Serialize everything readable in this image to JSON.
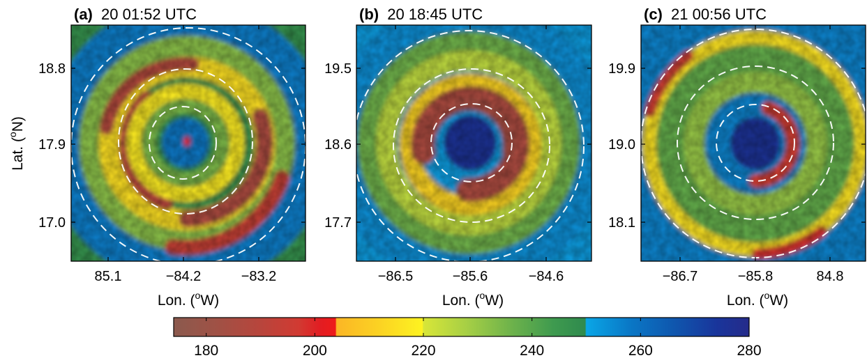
{
  "figure": {
    "ylabel": {
      "pre": "Lat. (",
      "sup": "o",
      "post": "N)"
    },
    "xlabel": {
      "pre": "Lon. (",
      "sup": "o",
      "post": "W)"
    }
  },
  "chart_data": {
    "type": "heatmap",
    "panels": [
      {
        "tag": "(a)",
        "time": "20 01:52 UTC",
        "xticks": [
          "85.1",
          "−84.2",
          "−83.2"
        ],
        "yticks": [
          "18.8",
          "17.9",
          "17.0"
        ],
        "xlim": [
          -85.7,
          -82.6
        ],
        "ylim": [
          16.5,
          19.5
        ],
        "eye_brightness_temp": 258,
        "structure": "Pinhole eye with tight inner eyewall and spiral bands; dashed rings mark radial distances from center"
      },
      {
        "tag": "(b)",
        "time": "20 18:45 UTC",
        "xticks": [
          "−86.5",
          "−85.6",
          "−84.6"
        ],
        "yticks": [
          "19.5",
          "18.6",
          "17.7"
        ],
        "xlim": [
          -87.1,
          -84.2
        ],
        "ylim": [
          17.1,
          20.1
        ],
        "eye_brightness_temp": 276,
        "structure": "Single eyewall ring of cold cloud tops around a warm eye"
      },
      {
        "tag": "(c)",
        "time": "21 00:56 UTC",
        "xticks": [
          "−86.7",
          "−85.8",
          "84.8"
        ],
        "yticks": [
          "19.9",
          "19.0",
          "18.1"
        ],
        "xlim": [
          -87.3,
          -84.4
        ],
        "ylim": [
          17.5,
          20.5
        ],
        "eye_brightness_temp": 276,
        "structure": "Broad eye with partial inner ring and outer spiral bands"
      }
    ],
    "colorbar": {
      "range": [
        174,
        280
      ],
      "ticks": [
        180,
        200,
        220,
        240,
        260,
        280
      ],
      "stops": [
        {
          "v": 174,
          "c": "#8b5a4e"
        },
        {
          "v": 182,
          "c": "#a05145"
        },
        {
          "v": 190,
          "c": "#b8453c"
        },
        {
          "v": 197,
          "c": "#d13a32"
        },
        {
          "v": 201,
          "c": "#e21d22"
        },
        {
          "v": 203.8,
          "c": "#ee1a1a"
        },
        {
          "v": 204,
          "c": "#fbb625"
        },
        {
          "v": 212,
          "c": "#fbd323"
        },
        {
          "v": 219.8,
          "c": "#fdf321"
        },
        {
          "v": 220,
          "c": "#d8e638"
        },
        {
          "v": 228,
          "c": "#a6cf45"
        },
        {
          "v": 236,
          "c": "#6fb34b"
        },
        {
          "v": 244,
          "c": "#3e9a4f"
        },
        {
          "v": 249.8,
          "c": "#2f8a4d"
        },
        {
          "v": 250,
          "c": "#0aa6e6"
        },
        {
          "v": 258,
          "c": "#0a78c6"
        },
        {
          "v": 266,
          "c": "#0f57ae"
        },
        {
          "v": 274,
          "c": "#19359b"
        },
        {
          "v": 280,
          "c": "#252b8a"
        }
      ]
    }
  }
}
